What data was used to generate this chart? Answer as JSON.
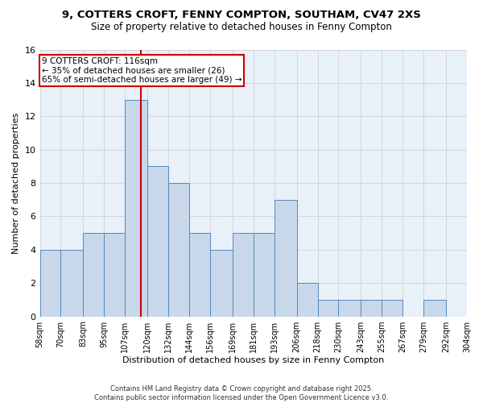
{
  "title_line1": "9, COTTERS CROFT, FENNY COMPTON, SOUTHAM, CV47 2XS",
  "title_line2": "Size of property relative to detached houses in Fenny Compton",
  "xlabel": "Distribution of detached houses by size in Fenny Compton",
  "ylabel": "Number of detached properties",
  "bin_edges": [
    58,
    70,
    83,
    95,
    107,
    120,
    132,
    144,
    156,
    169,
    181,
    193,
    206,
    218,
    230,
    243,
    255,
    267,
    279,
    292,
    304
  ],
  "bin_labels": [
    "58sqm",
    "70sqm",
    "83sqm",
    "95sqm",
    "107sqm",
    "120sqm",
    "132sqm",
    "144sqm",
    "156sqm",
    "169sqm",
    "181sqm",
    "193sqm",
    "206sqm",
    "218sqm",
    "230sqm",
    "243sqm",
    "255sqm",
    "267sqm",
    "279sqm",
    "292sqm",
    "304sqm"
  ],
  "counts": [
    4,
    4,
    5,
    5,
    13,
    9,
    8,
    5,
    4,
    5,
    5,
    7,
    2,
    1,
    1,
    1,
    1,
    0,
    1,
    0
  ],
  "bar_color": "#c8d8ea",
  "bar_edge_color": "#5588bb",
  "red_line_x": 116,
  "annotation_line1": "9 COTTERS CROFT: 116sqm",
  "annotation_line2": "← 35% of detached houses are smaller (26)",
  "annotation_line3": "65% of semi-detached houses are larger (49) →",
  "annotation_box_color": "#ffffff",
  "annotation_box_edge_color": "#cc0000",
  "red_line_color": "#cc0000",
  "ylim": [
    0,
    16
  ],
  "yticks": [
    0,
    2,
    4,
    6,
    8,
    10,
    12,
    14,
    16
  ],
  "grid_color": "#cccccc",
  "bg_color": "#e8f0f8",
  "footer_text": "Contains HM Land Registry data © Crown copyright and database right 2025.\nContains public sector information licensed under the Open Government Licence v3.0."
}
